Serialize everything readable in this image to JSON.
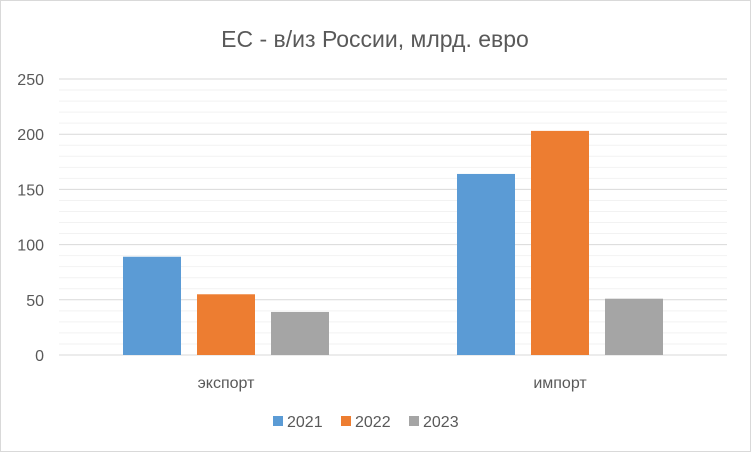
{
  "chart_data": {
    "type": "bar",
    "title": "ЕС - в/из России, млрд. евро",
    "categories": [
      "экспорт",
      "импорт"
    ],
    "series": [
      {
        "name": "2021",
        "values": [
          89,
          164
        ],
        "color": "#5b9bd5"
      },
      {
        "name": "2022",
        "values": [
          55,
          203
        ],
        "color": "#ed7d31"
      },
      {
        "name": "2023",
        "values": [
          39,
          51
        ],
        "color": "#a5a5a5"
      }
    ],
    "ylim": [
      0,
      250
    ],
    "yticks": [
      0,
      50,
      100,
      150,
      200,
      250
    ],
    "grid": true,
    "legend": "bottom"
  }
}
